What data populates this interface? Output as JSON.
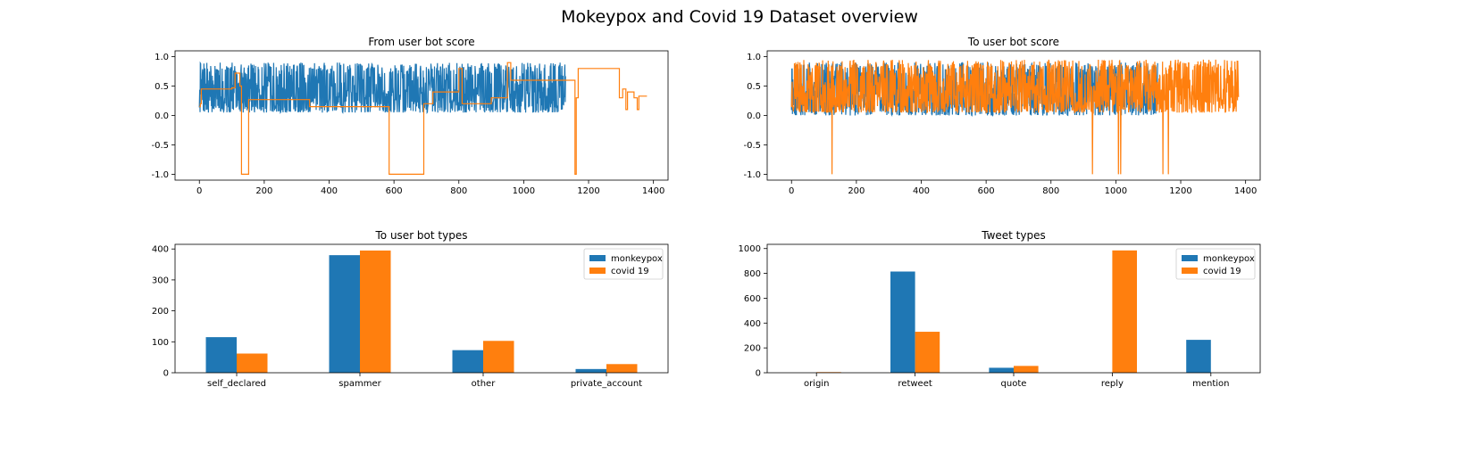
{
  "figure": {
    "title": "Mokeypox and Covid 19 Dataset overview"
  },
  "colors": {
    "monkeypox": "#1f77b4",
    "covid": "#ff7f0e"
  },
  "chart_data": [
    {
      "id": "from_score",
      "type": "line",
      "title": "From user bot score",
      "xlim": [
        -75,
        1445
      ],
      "ylim": [
        -1.1,
        1.1
      ],
      "xticks": [
        0,
        200,
        400,
        600,
        800,
        1000,
        1200,
        1400
      ],
      "yticks": [
        -1.0,
        -0.5,
        0.0,
        0.5,
        1.0
      ],
      "series": [
        {
          "name": "monkeypox",
          "color": "#1f77b4",
          "n": 1130,
          "noisy": true,
          "low": 0.05,
          "high": 0.9,
          "seed": 7
        },
        {
          "name": "covid 19",
          "color": "#ff7f0e",
          "noisy": false,
          "steps": [
            [
              0,
              0.15
            ],
            [
              3,
              0.2
            ],
            [
              6,
              0.45
            ],
            [
              100,
              0.47
            ],
            [
              110,
              0.72
            ],
            [
              125,
              0.5
            ],
            [
              130,
              -1.0
            ],
            [
              150,
              -1.0
            ],
            [
              152,
              0.27
            ],
            [
              330,
              0.27
            ],
            [
              340,
              0.15
            ],
            [
              580,
              0.15
            ],
            [
              585,
              -1.0
            ],
            [
              690,
              -1.0
            ],
            [
              692,
              0.2
            ],
            [
              720,
              0.4
            ],
            [
              800,
              0.8
            ],
            [
              810,
              0.2
            ],
            [
              900,
              0.3
            ],
            [
              950,
              0.9
            ],
            [
              960,
              0.6
            ],
            [
              1150,
              0.6
            ],
            [
              1158,
              -1.0
            ],
            [
              1162,
              0.3
            ],
            [
              1168,
              0.8
            ],
            [
              1290,
              0.8
            ],
            [
              1295,
              0.3
            ],
            [
              1305,
              0.45
            ],
            [
              1315,
              0.1
            ],
            [
              1320,
              0.4
            ],
            [
              1340,
              0.3
            ],
            [
              1350,
              0.1
            ],
            [
              1355,
              0.33
            ],
            [
              1380,
              0.33
            ]
          ]
        }
      ]
    },
    {
      "id": "to_score",
      "type": "line",
      "title": "To user bot score",
      "xlim": [
        -75,
        1445
      ],
      "ylim": [
        -1.1,
        1.1
      ],
      "xticks": [
        0,
        200,
        400,
        600,
        800,
        1000,
        1200,
        1400
      ],
      "yticks": [
        -1.0,
        -0.5,
        0.0,
        0.5,
        1.0
      ],
      "series": [
        {
          "name": "monkeypox",
          "color": "#1f77b4",
          "n": 1130,
          "noisy": true,
          "low": 0.0,
          "high": 0.9,
          "seed": 11
        },
        {
          "name": "covid 19",
          "color": "#ff7f0e",
          "n": 1380,
          "noisy": true,
          "low": 0.05,
          "high": 0.95,
          "seed": 23,
          "spikes": [
            [
              125,
              -1.0
            ],
            [
              928,
              -1.0
            ],
            [
              1008,
              -1.0
            ],
            [
              1015,
              -1.0
            ],
            [
              1145,
              -1.0
            ],
            [
              1162,
              -1.0
            ]
          ]
        }
      ]
    },
    {
      "id": "to_types",
      "type": "bar",
      "title": "To user bot types",
      "categories": [
        "self_declared",
        "spammer",
        "other",
        "private_account"
      ],
      "series": [
        {
          "name": "monkeypox",
          "values": [
            115,
            380,
            73,
            12
          ]
        },
        {
          "name": "covid 19",
          "values": [
            62,
            395,
            103,
            28
          ]
        }
      ],
      "ylim": [
        0,
        415
      ],
      "yticks": [
        0,
        100,
        200,
        300,
        400
      ],
      "legend": "top-right"
    },
    {
      "id": "tweet_types",
      "type": "bar",
      "title": "Tweet types",
      "categories": [
        "origin",
        "retweet",
        "quote",
        "reply",
        "mention"
      ],
      "series": [
        {
          "name": "monkeypox",
          "values": [
            0,
            815,
            40,
            0,
            265
          ]
        },
        {
          "name": "covid 19",
          "values": [
            5,
            330,
            55,
            985,
            0
          ]
        }
      ],
      "ylim": [
        0,
        1034
      ],
      "yticks": [
        0,
        200,
        400,
        600,
        800,
        1000
      ],
      "legend": "top-right"
    }
  ]
}
